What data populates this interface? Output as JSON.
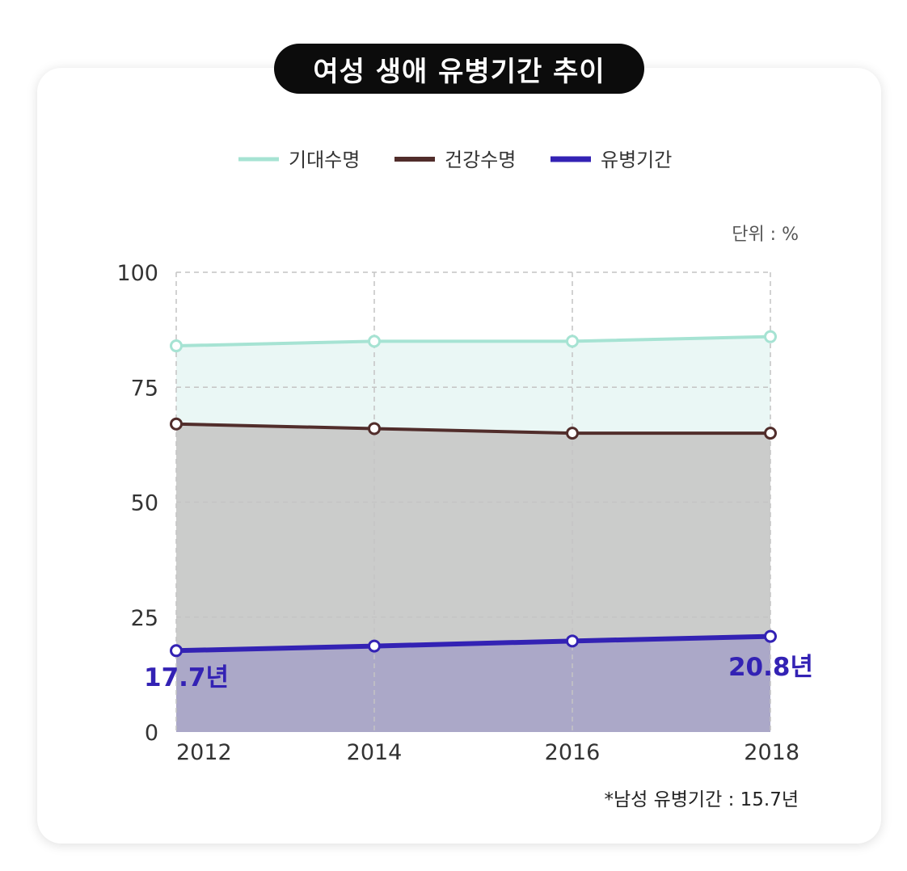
{
  "title": "여성 생애 유병기간 추이",
  "unit": "단위 : %",
  "note": "*남성 유병기간 : 15.7년",
  "colors": {
    "life_expectancy": "#a6e3d3",
    "life_expectancy_fill": "#eaf7f5",
    "healthy_life": "#512d2b",
    "healthy_fill": "#cbcccb",
    "morbidity": "#3322b4",
    "morbidity_fill": "#aba8c8"
  },
  "chart_data": {
    "type": "area",
    "title": "여성 생애 유병기간 추이",
    "categories": [
      "2012",
      "2014",
      "2016",
      "2018"
    ],
    "ylim": [
      0,
      100
    ],
    "yticks": [
      0,
      25,
      50,
      75,
      100
    ],
    "grid": true,
    "legend_position": "top-center",
    "series": [
      {
        "key": "life_expectancy",
        "name": "기대수명",
        "values": [
          84.0,
          85.0,
          85.0,
          86.0
        ]
      },
      {
        "key": "healthy_life",
        "name": "건강수명",
        "values": [
          67.0,
          66.0,
          65.0,
          65.0
        ]
      },
      {
        "key": "morbidity",
        "name": "유병기간",
        "values": [
          17.7,
          18.7,
          19.8,
          20.8
        ]
      }
    ],
    "annotations": {
      "start_label": "17.7년",
      "end_label": "20.8년"
    }
  }
}
